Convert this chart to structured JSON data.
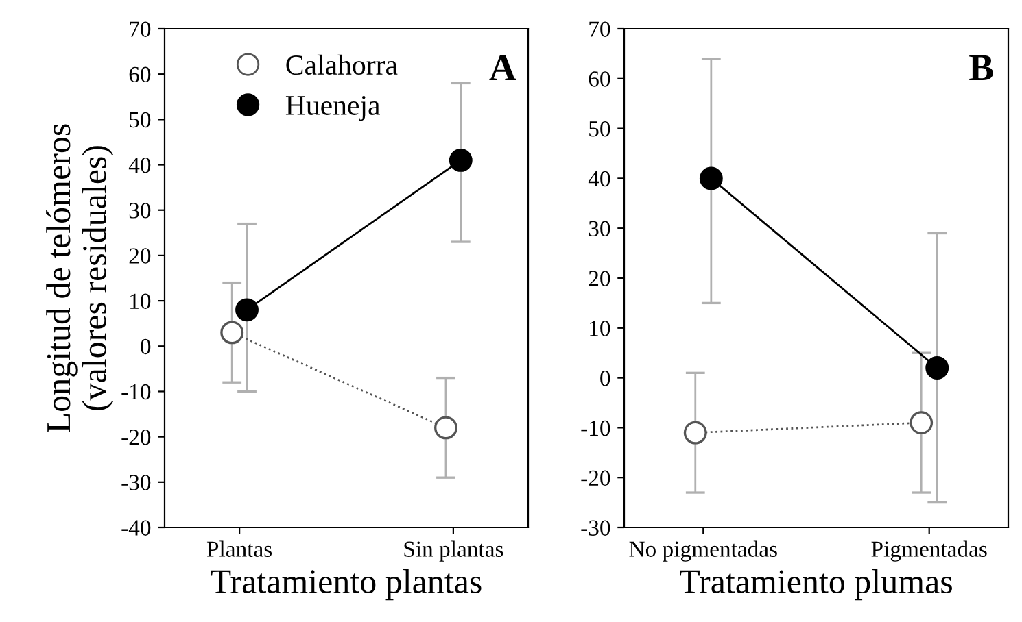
{
  "chart_data": [
    {
      "type": "line",
      "categories": [
        "Plantas",
        "Sin plantas"
      ],
      "xlabel": "Tratamiento plantas",
      "ylabel": "Longitud de telómeros\n(valores residuales)",
      "annotations": [
        "A"
      ],
      "ylim": [
        -40,
        70
      ],
      "yticks": [
        -40,
        -30,
        -20,
        -10,
        0,
        10,
        20,
        30,
        40,
        50,
        60,
        70
      ],
      "grid": false,
      "legend": "top left",
      "marker": "circle",
      "series": [
        {
          "name": "Calahorra",
          "color": "#555555",
          "line_style": "dotted",
          "values": [
            3,
            -18
          ],
          "errors": [
            [
              -8,
              14
            ],
            [
              -29,
              -7
            ]
          ]
        },
        {
          "name": "Hueneja",
          "color": "#000000",
          "line_style": "solid",
          "values": [
            8,
            41
          ],
          "errors": [
            [
              -10,
              27
            ],
            [
              23,
              58
            ]
          ]
        }
      ]
    },
    {
      "type": "line",
      "categories": [
        "No pigmentadas",
        "Pigmentadas"
      ],
      "xlabel": "Tratamiento plumas",
      "annotations": [
        "B"
      ],
      "ylim": [
        -30,
        70
      ],
      "yticks": [
        -30,
        -20,
        -10,
        0,
        10,
        20,
        30,
        40,
        50,
        60,
        70
      ],
      "grid": false,
      "legend": false,
      "marker": "circle",
      "series": [
        {
          "color": "#555555",
          "line_style": "dotted",
          "values": [
            -11,
            -9
          ],
          "errors": [
            [
              -23,
              1
            ],
            [
              -23,
              5
            ]
          ]
        },
        {
          "color": "#000000",
          "line_style": "solid",
          "values": [
            40,
            2
          ],
          "errors": [
            [
              15,
              64
            ],
            [
              -25,
              29
            ]
          ]
        }
      ]
    }
  ]
}
